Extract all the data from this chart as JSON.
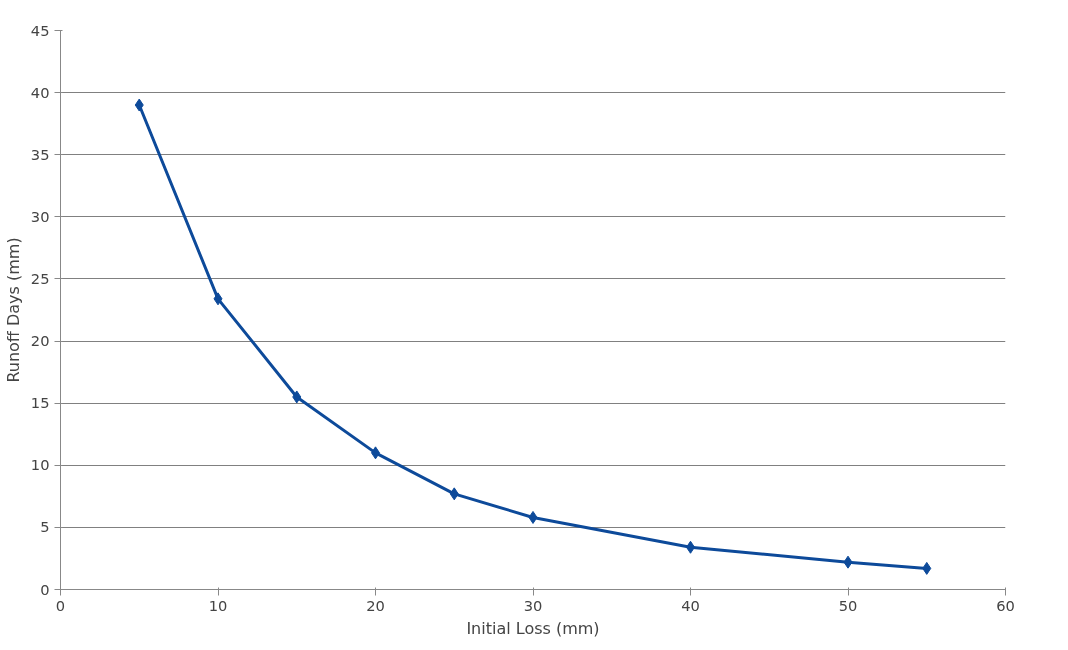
{
  "chart_data": {
    "type": "line",
    "xlabel": "Initial Loss (mm)",
    "ylabel": "Runoff Days (mm)",
    "x": [
      5,
      10,
      15,
      20,
      25,
      30,
      40,
      50,
      55
    ],
    "series": [
      {
        "color": "#0d4a9a",
        "values": [
          39,
          23.4,
          15.5,
          11,
          7.7,
          5.8,
          3.4,
          2.2,
          1.7
        ]
      }
    ],
    "xlim": [
      0,
      60
    ],
    "xticks": [
      0,
      10,
      20,
      30,
      40,
      50,
      60
    ],
    "ylim": [
      0,
      45
    ],
    "yticks": [
      0,
      5,
      10,
      15,
      20,
      25,
      30,
      35,
      40,
      45
    ],
    "grid": "y",
    "marker": "diamond",
    "line_style": "solid"
  }
}
